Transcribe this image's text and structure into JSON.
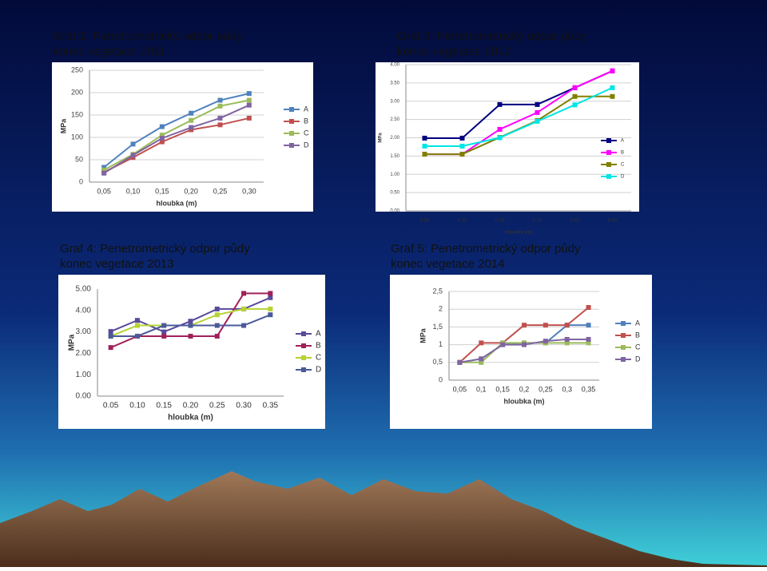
{
  "chart_data": [
    {
      "type": "line",
      "title": "Graf 2: Penetrometrický odpor půdy",
      "subtitle": "konec vegetace 2011",
      "x_label": "hloubka (m)",
      "y_label": "MPa",
      "categories": [
        "0,05",
        "0,10",
        "0,15",
        "0,20",
        "0,25",
        "0,30"
      ],
      "ylim": [
        0,
        250
      ],
      "yticks": [
        0,
        50,
        100,
        150,
        200,
        250
      ],
      "grid": true,
      "series": [
        {
          "name": "A",
          "color": "#4f81bd",
          "values": [
            33,
            85,
            124,
            154,
            183,
            198
          ]
        },
        {
          "name": "B",
          "color": "#c0504d",
          "values": [
            22,
            55,
            90,
            117,
            128,
            143
          ]
        },
        {
          "name": "C",
          "color": "#9bbb59",
          "values": [
            27,
            62,
            105,
            138,
            170,
            183
          ]
        },
        {
          "name": "D",
          "color": "#8064a2",
          "values": [
            20,
            60,
            98,
            122,
            143,
            172
          ]
        }
      ]
    },
    {
      "type": "line",
      "title": "Graf 3: Penetrometrický odpor půdy",
      "subtitle": "konec vegetace 2012",
      "x_label": "hloubka (m)",
      "y_label": "MPa",
      "categories": [
        "0.05",
        "0.10",
        "0.15",
        "0.20",
        "0.25",
        "0.30"
      ],
      "ylim": [
        0,
        4
      ],
      "yticks": [
        {
          "value": 0,
          "label": "0.00"
        },
        {
          "value": 0.5,
          "label": "0.50"
        },
        {
          "value": 1,
          "label": "1.00"
        },
        {
          "value": 1.5,
          "label": "1.50"
        },
        {
          "value": 2,
          "label": "2.00"
        },
        {
          "value": 2.5,
          "label": "2.50"
        },
        {
          "value": 3,
          "label": "3.00"
        },
        {
          "value": 3.5,
          "label": "3.50"
        },
        {
          "value": 4,
          "label": "4.00"
        }
      ],
      "grid": true,
      "series": [
        {
          "name": "A",
          "color": "#000080",
          "values": [
            1.99,
            1.99,
            2.91,
            2.91,
            3.37,
            3.83
          ]
        },
        {
          "name": "B",
          "color": "#ff00ff",
          "values": [
            1.55,
            1.55,
            2.23,
            2.69,
            3.37,
            3.83
          ]
        },
        {
          "name": "C",
          "color": "#808000",
          "values": [
            1.55,
            1.55,
            2.01,
            2.47,
            3.13,
            3.13
          ]
        },
        {
          "name": "D",
          "color": "#00e5e5",
          "values": [
            1.77,
            1.77,
            2.0,
            2.45,
            2.9,
            3.37
          ]
        }
      ]
    },
    {
      "type": "line",
      "title": "Graf 4: Penetrometrický odpor půdy",
      "subtitle": "konec vegetace 2013",
      "x_label": "hloubka (m)",
      "y_label": "MPa",
      "categories": [
        "0.05",
        "0.10",
        "0.15",
        "0.20",
        "0.25",
        "0.30",
        "0.35"
      ],
      "ylim": [
        0,
        5
      ],
      "yticks": [
        {
          "value": 0,
          "label": "0.00"
        },
        {
          "value": 1,
          "label": "1.00"
        },
        {
          "value": 2,
          "label": "2.00"
        },
        {
          "value": 3,
          "label": "3.00"
        },
        {
          "value": 4,
          "label": "4.00"
        },
        {
          "value": 5,
          "label": "5.00"
        }
      ],
      "grid": false,
      "series": [
        {
          "name": "A",
          "color": "#5a4a9a",
          "values": [
            3.02,
            3.54,
            3.0,
            3.5,
            4.07,
            4.07,
            4.6
          ]
        },
        {
          "name": "B",
          "color": "#a0205a",
          "values": [
            2.27,
            2.8,
            2.8,
            2.8,
            2.8,
            4.8,
            4.8
          ]
        },
        {
          "name": "C",
          "color": "#b5d334",
          "values": [
            2.8,
            3.3,
            3.3,
            3.3,
            3.8,
            4.07,
            4.07
          ]
        },
        {
          "name": "D",
          "color": "#4a5a9a",
          "values": [
            2.8,
            2.8,
            3.3,
            3.3,
            3.3,
            3.3,
            3.8
          ]
        }
      ]
    },
    {
      "type": "line",
      "title": "Graf 5: Penetrometrický odpor půdy",
      "subtitle": "konec vegetace 2014",
      "x_label": "hloubka (m)",
      "y_label": "MPa",
      "categories": [
        "0,05",
        "0,1",
        "0,15",
        "0,2",
        "0,25",
        "0,3",
        "0,35"
      ],
      "ylim": [
        0,
        2.5
      ],
      "yticks": [
        0,
        {
          "value": 0.5,
          "label": "0,5"
        },
        1,
        {
          "value": 1.5,
          "label": "1,5"
        },
        2,
        {
          "value": 2.5,
          "label": "2,5"
        }
      ],
      "grid": true,
      "series": [
        {
          "name": "A",
          "color": "#4f81bd",
          "values": [
            0.5,
            0.6,
            1.0,
            1.05,
            1.05,
            1.55,
            1.55
          ]
        },
        {
          "name": "B",
          "color": "#c0504d",
          "values": [
            0.5,
            1.05,
            1.05,
            1.55,
            1.55,
            1.55,
            2.05
          ]
        },
        {
          "name": "C",
          "color": "#9bbb59",
          "values": [
            0.5,
            0.5,
            1.05,
            1.05,
            1.05,
            1.05,
            1.05
          ]
        },
        {
          "name": "D",
          "color": "#8064a2",
          "values": [
            0.5,
            0.6,
            1.0,
            1.0,
            1.1,
            1.15,
            1.15
          ]
        }
      ]
    }
  ]
}
